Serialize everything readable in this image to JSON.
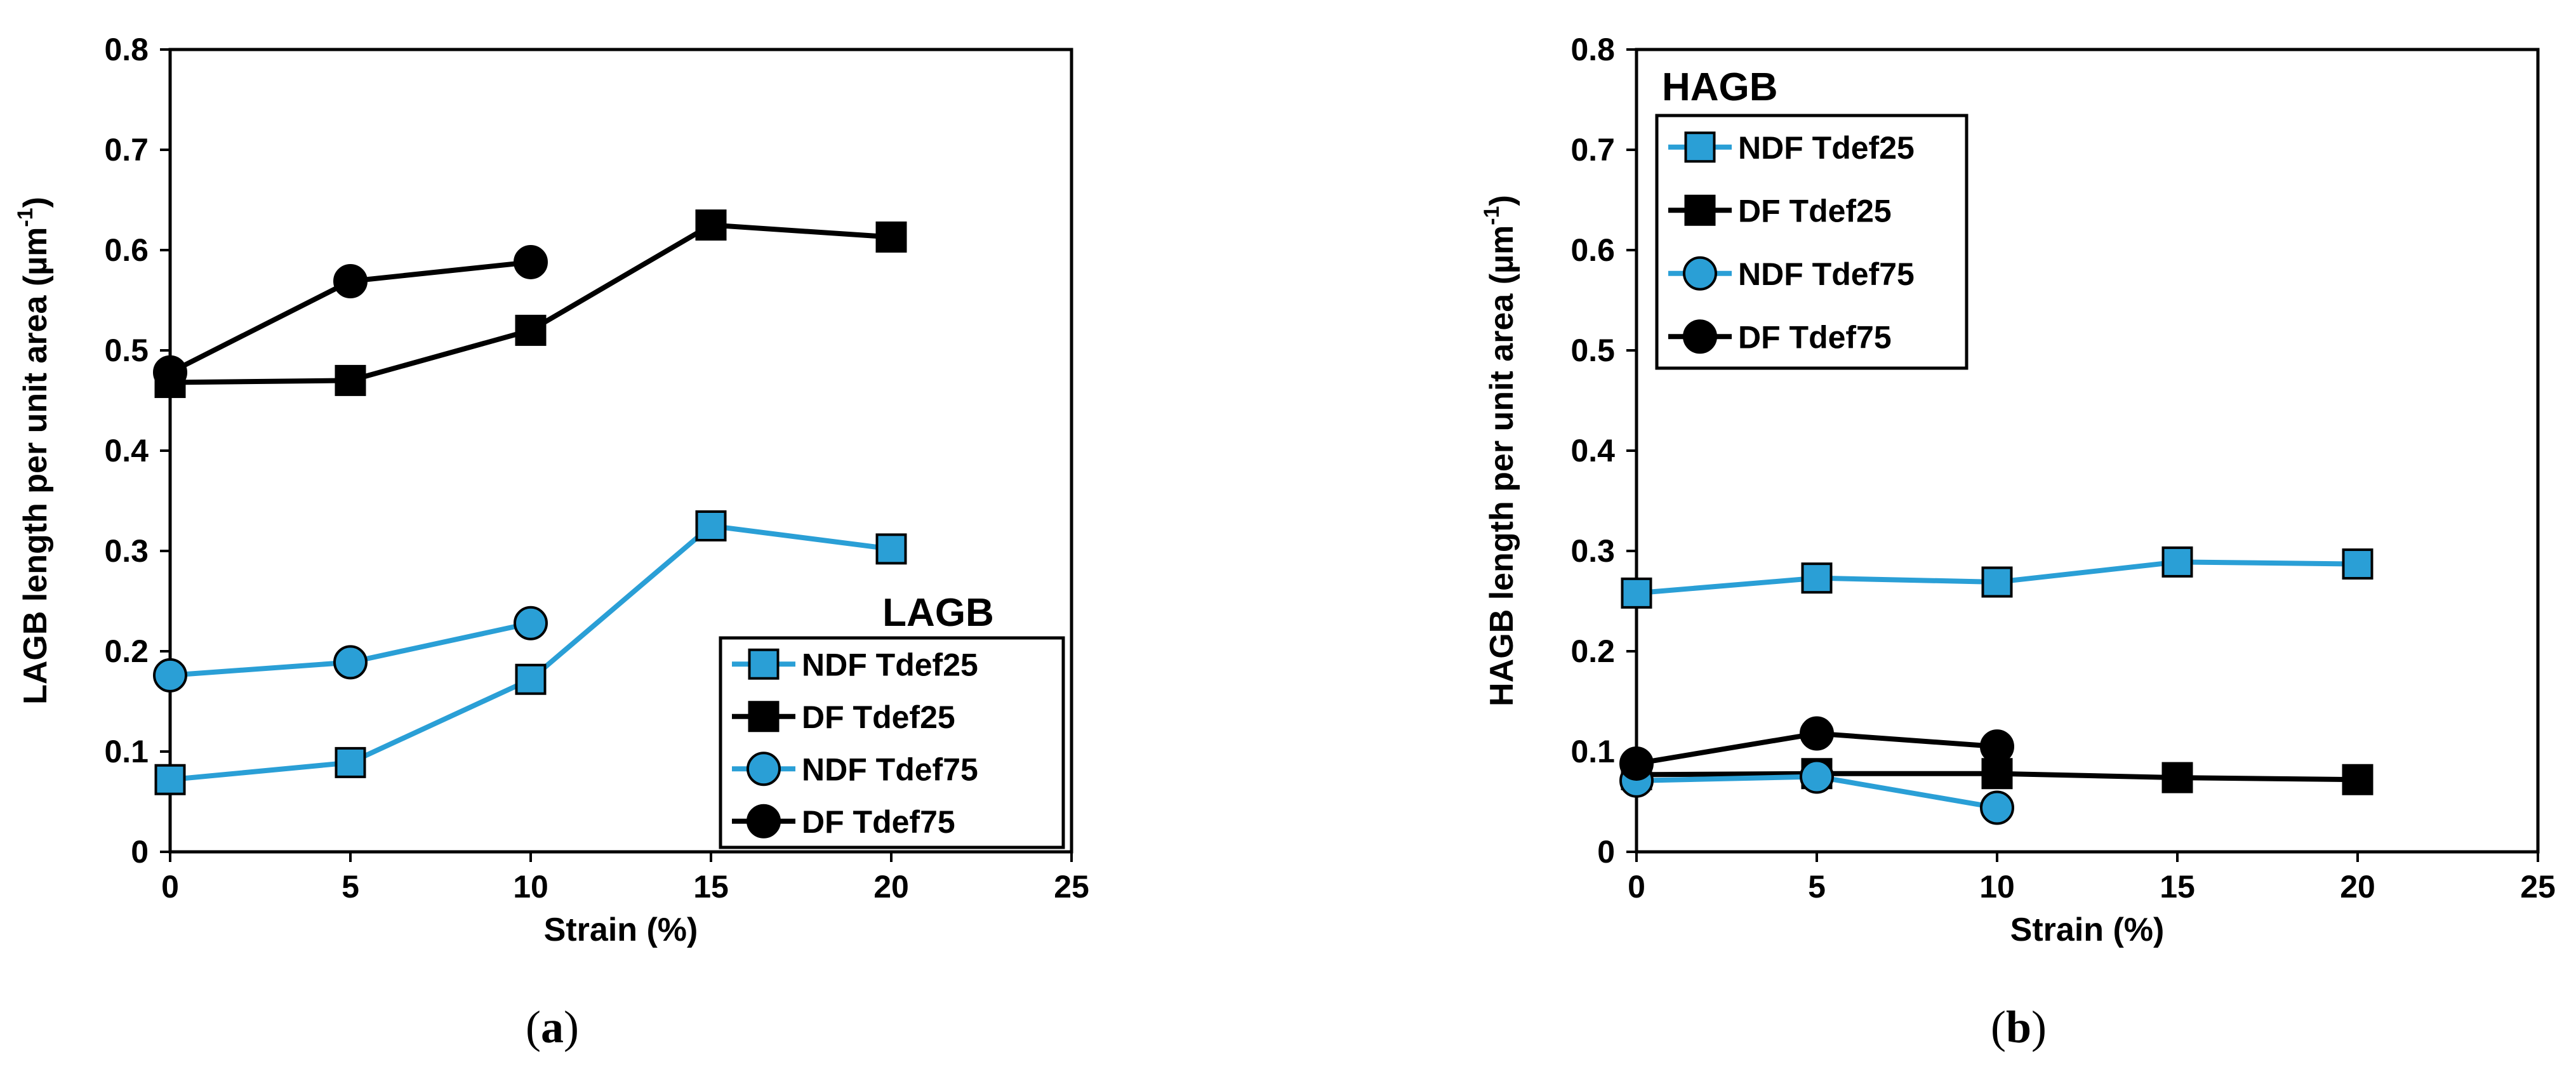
{
  "colors": {
    "ndf": "#2a9fd6",
    "df": "#000000",
    "frame": "#000000"
  },
  "chart_data": [
    {
      "type": "line",
      "caption_label": "a",
      "title": "LAGB",
      "xlabel": "Strain (%)",
      "ylabel": "LAGB length per unit area (µm",
      "ylabel_sup": "-1",
      "ylabel_end": ")",
      "xlim": [
        0,
        25
      ],
      "ylim": [
        0,
        0.8
      ],
      "xticks": [
        "0",
        "5",
        "10",
        "15",
        "20",
        "25"
      ],
      "yticks": [
        "0",
        "0.1",
        "0.2",
        "0.3",
        "0.4",
        "0.5",
        "0.6",
        "0.7",
        "0.8"
      ],
      "legend_position": "bottom-right",
      "series": [
        {
          "name": "NDF Tdef25",
          "marker": "square",
          "color": "ndf",
          "x": [
            0,
            5,
            10,
            15,
            20
          ],
          "values": [
            0.072,
            0.089,
            0.172,
            0.325,
            0.302
          ]
        },
        {
          "name": "DF Tdef25",
          "marker": "square",
          "color": "df",
          "x": [
            0,
            5,
            10,
            15,
            20
          ],
          "values": [
            0.468,
            0.47,
            0.52,
            0.625,
            0.613
          ]
        },
        {
          "name": "NDF Tdef75",
          "marker": "circle",
          "color": "ndf",
          "x": [
            0,
            5,
            10
          ],
          "values": [
            0.176,
            0.189,
            0.228
          ]
        },
        {
          "name": "DF Tdef75",
          "marker": "circle",
          "color": "df",
          "x": [
            0,
            5,
            10
          ],
          "values": [
            0.478,
            0.569,
            0.588
          ]
        }
      ]
    },
    {
      "type": "line",
      "caption_label": "b",
      "title": "HAGB",
      "xlabel": "Strain (%)",
      "ylabel": "HAGB length per unit area (µm",
      "ylabel_sup": "-1",
      "ylabel_end": ")",
      "xlim": [
        0,
        25
      ],
      "ylim": [
        0,
        0.8
      ],
      "xticks": [
        "0",
        "5",
        "10",
        "15",
        "20",
        "25"
      ],
      "yticks": [
        "0",
        "0.1",
        "0.2",
        "0.3",
        "0.4",
        "0.5",
        "0.6",
        "0.7",
        "0.8"
      ],
      "legend_position": "top-left",
      "series": [
        {
          "name": "NDF Tdef25",
          "marker": "square",
          "color": "ndf",
          "x": [
            0,
            5,
            10,
            15,
            20
          ],
          "values": [
            0.258,
            0.273,
            0.269,
            0.289,
            0.287
          ]
        },
        {
          "name": "DF Tdef25",
          "marker": "square",
          "color": "df",
          "x": [
            0,
            5,
            10,
            15,
            20
          ],
          "values": [
            0.077,
            0.078,
            0.078,
            0.074,
            0.072
          ]
        },
        {
          "name": "NDF Tdef75",
          "marker": "circle",
          "color": "ndf",
          "x": [
            0,
            5,
            10
          ],
          "values": [
            0.071,
            0.075,
            0.044
          ]
        },
        {
          "name": "DF Tdef75",
          "marker": "circle",
          "color": "df",
          "x": [
            0,
            5,
            10
          ],
          "values": [
            0.088,
            0.118,
            0.105
          ]
        }
      ]
    }
  ]
}
